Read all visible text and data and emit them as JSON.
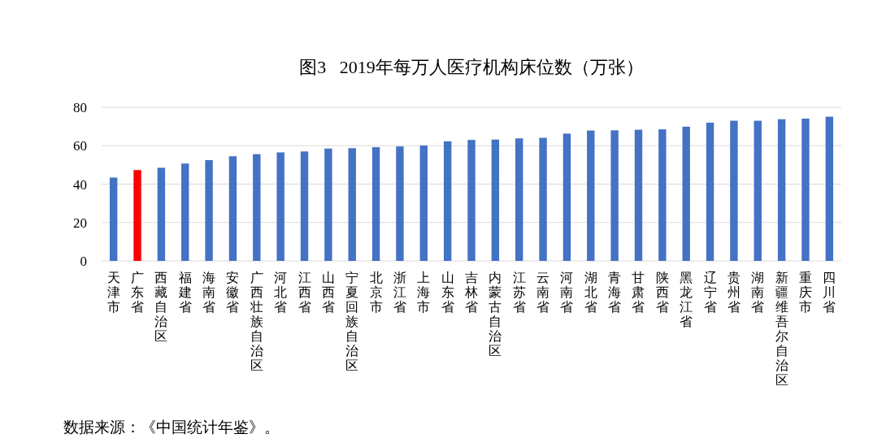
{
  "chart_data": {
    "type": "bar",
    "title": "图3   2019年每万人医疗机构床位数（万张）",
    "categories": [
      "天津市",
      "广东省",
      "西藏自治区",
      "福建省",
      "海南省",
      "安徽省",
      "广西壮族自治区",
      "河北省",
      "江西省",
      "山西省",
      "宁夏回族自治区",
      "北京市",
      "浙江省",
      "上海市",
      "山东省",
      "吉林省",
      "内蒙古自治区",
      "江苏省",
      "云南省",
      "河南省",
      "湖北省",
      "青海省",
      "甘肃省",
      "陕西省",
      "黑龙江省",
      "辽宁省",
      "贵州省",
      "湖南省",
      "新疆维吾尔自治区",
      "重庆市",
      "四川省"
    ],
    "values": [
      43.4,
      47.3,
      48.5,
      50.7,
      52.5,
      54.5,
      55.6,
      56.5,
      57.0,
      58.5,
      58.7,
      59.2,
      59.6,
      60.1,
      62.3,
      63.0,
      63.2,
      63.8,
      64.1,
      66.3,
      67.9,
      68.0,
      68.3,
      68.5,
      69.9,
      72.0,
      73.0,
      73.0,
      73.8,
      74.1,
      75.1
    ],
    "colors": [
      "#4472c4",
      "#ff0000",
      "#4472c4",
      "#4472c4",
      "#4472c4",
      "#4472c4",
      "#4472c4",
      "#4472c4",
      "#4472c4",
      "#4472c4",
      "#4472c4",
      "#4472c4",
      "#4472c4",
      "#4472c4",
      "#4472c4",
      "#4472c4",
      "#4472c4",
      "#4472c4",
      "#4472c4",
      "#4472c4",
      "#4472c4",
      "#4472c4",
      "#4472c4",
      "#4472c4",
      "#4472c4",
      "#4472c4",
      "#4472c4",
      "#4472c4",
      "#4472c4",
      "#4472c4",
      "#4472c4"
    ],
    "ylim": [
      0,
      80
    ],
    "yticks": [
      0,
      20,
      40,
      60,
      80
    ],
    "grid": "y",
    "annotations": [
      "数据来源：《中国统计年鉴》。"
    ]
  }
}
